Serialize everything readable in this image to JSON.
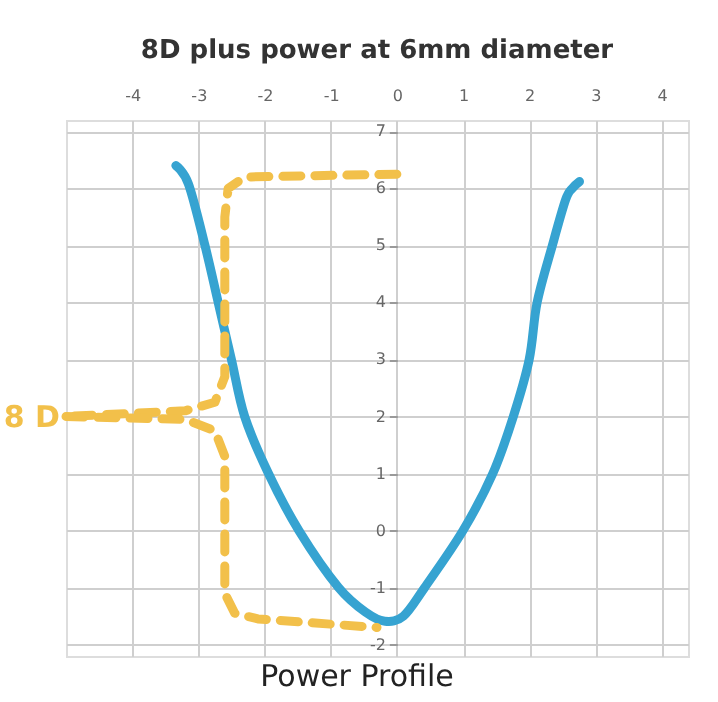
{
  "chart_data": {
    "type": "line",
    "title": "8D plus power at 6mm diameter",
    "xlabel": "Power Profile",
    "annotations": [
      "8 D"
    ],
    "series": [
      {
        "color": "#36a3d1",
        "x": [
          -3.34,
          -3.15,
          -2.9,
          -2.7,
          -2.5,
          -2.3,
          -1.94,
          -1.48,
          -0.88,
          -0.45,
          -0.18,
          0.1,
          0.42,
          1.0,
          1.45,
          1.76,
          2.0,
          2.12,
          2.35,
          2.55,
          2.65,
          2.76
        ],
        "values": [
          6.4,
          6.08,
          5.0,
          4.0,
          3.0,
          2.0,
          1.0,
          0.0,
          -1.0,
          -1.45,
          -1.59,
          -1.5,
          -1.0,
          0.0,
          1.0,
          2.0,
          3.0,
          4.0,
          5.0,
          5.8,
          6.0,
          6.12
        ]
      },
      {
        "color": "#f2c04a",
        "line_style": "dashed",
        "x": [
          0.0,
          -2.3,
          -2.55,
          -2.6,
          -2.6,
          -2.75,
          -3.2,
          -5.0
        ],
        "values": [
          6.25,
          6.2,
          6.0,
          5.5,
          2.7,
          2.25,
          2.1,
          2.0
        ]
      },
      {
        "color": "#f2c04a",
        "line_style": "dashed",
        "x": [
          -5.0,
          -3.2,
          -2.75,
          -2.6,
          -2.6,
          -2.45,
          -2.1,
          -0.3
        ],
        "values": [
          2.0,
          1.95,
          1.75,
          1.3,
          -1.1,
          -1.45,
          -1.55,
          -1.7
        ]
      }
    ],
    "xlim": [
      -5.0,
      4.4
    ],
    "ylim": [
      -2.2,
      7.2
    ],
    "xticks": [
      -4,
      -3,
      -2,
      -1,
      0,
      1,
      2,
      3,
      4
    ],
    "yticks": [
      -2,
      -1,
      0,
      1,
      2,
      3,
      4,
      5,
      6,
      7
    ],
    "grid": true,
    "marker": "none",
    "line_style": "solid"
  }
}
